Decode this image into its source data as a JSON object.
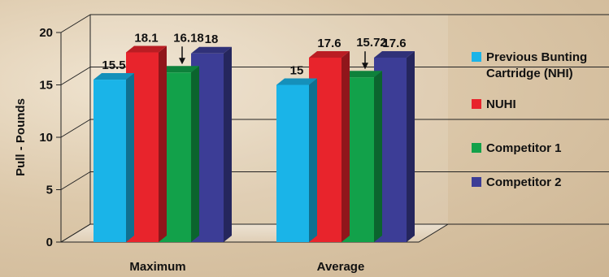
{
  "chart_data": {
    "type": "bar",
    "categories": [
      "Maximum",
      "Average"
    ],
    "ylabel": "Pull - Pounds",
    "xlabel": "",
    "ylim": [
      0,
      20
    ],
    "yticks": [
      "0",
      "5",
      "10",
      "15",
      "20"
    ],
    "grid": true,
    "legend_position": "right",
    "series": [
      {
        "name": "Previous Bunting Cartridge (NHI)",
        "legend_lines": [
          "Previous Bunting",
          "Cartridge (NHI)"
        ],
        "values": [
          15.5,
          15
        ],
        "labels": [
          "15.5",
          "15"
        ],
        "color": "#1ab4e8"
      },
      {
        "name": "NUHI",
        "legend_lines": [
          "NUHI"
        ],
        "values": [
          18.1,
          17.6
        ],
        "labels": [
          "18.1",
          "17.6"
        ],
        "color": "#e8242c"
      },
      {
        "name": "Competitor 1",
        "legend_lines": [
          "Competitor 1"
        ],
        "values": [
          16.18,
          15.72
        ],
        "labels": [
          "16.18",
          "15.72"
        ],
        "color": "#12a14a"
      },
      {
        "name": "Competitor 2",
        "legend_lines": [
          "Competitor 2"
        ],
        "values": [
          18,
          17.6
        ],
        "labels": [
          "18",
          "17.6"
        ],
        "color": "#3c3d96"
      }
    ]
  }
}
